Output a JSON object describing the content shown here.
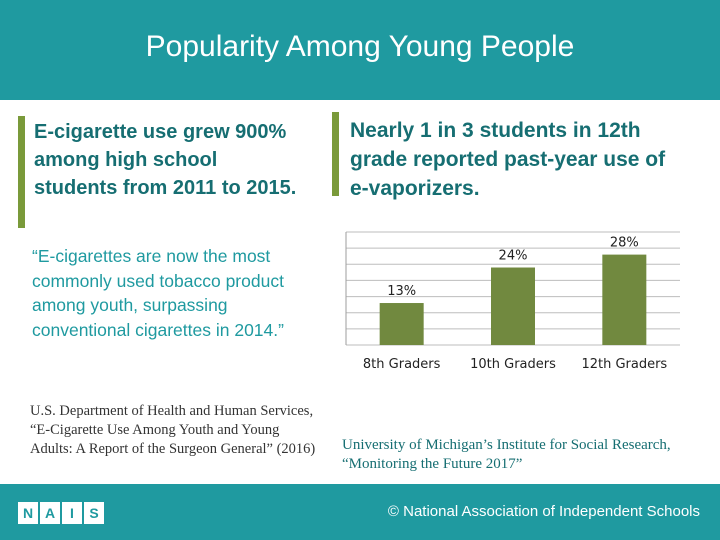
{
  "header": {
    "title": "Popularity Among Young People"
  },
  "left": {
    "headline": "E-cigarette use grew 900%  among high school students from 2011 to 2015.",
    "quote": "“E-cigarettes are now the most commonly used tobacco product among youth, surpassing conventional cigarettes in 2014.”",
    "source": "U.S. Department of Health and Human Services, “E-Cigarette Use Among Youth and Young Adults: A Report of the Surgeon General” (2016)"
  },
  "right": {
    "headline": "Nearly 1 in 3 students in 12th grade reported past-year use of e-vaporizers.",
    "source": "University of Michigan’s Institute for Social Research, “Monitoring the Future 2017”"
  },
  "chart_data": {
    "type": "bar",
    "title": "",
    "categories": [
      "8th Graders",
      "10th Graders",
      "12th Graders"
    ],
    "values": [
      13,
      24,
      28
    ],
    "data_labels": [
      "13%",
      "24%",
      "28%"
    ],
    "ylim": [
      0,
      35
    ],
    "grid": true,
    "bar_color": "#71893f",
    "xlabel": "",
    "ylabel": ""
  },
  "footer": {
    "logo_letters": [
      "N",
      "A",
      "I",
      "S"
    ],
    "org": "© National Association of Independent Schools"
  },
  "colors": {
    "teal": "#1f9aa0",
    "dark_teal": "#166e72",
    "accent_green": "#7a9a3a"
  }
}
